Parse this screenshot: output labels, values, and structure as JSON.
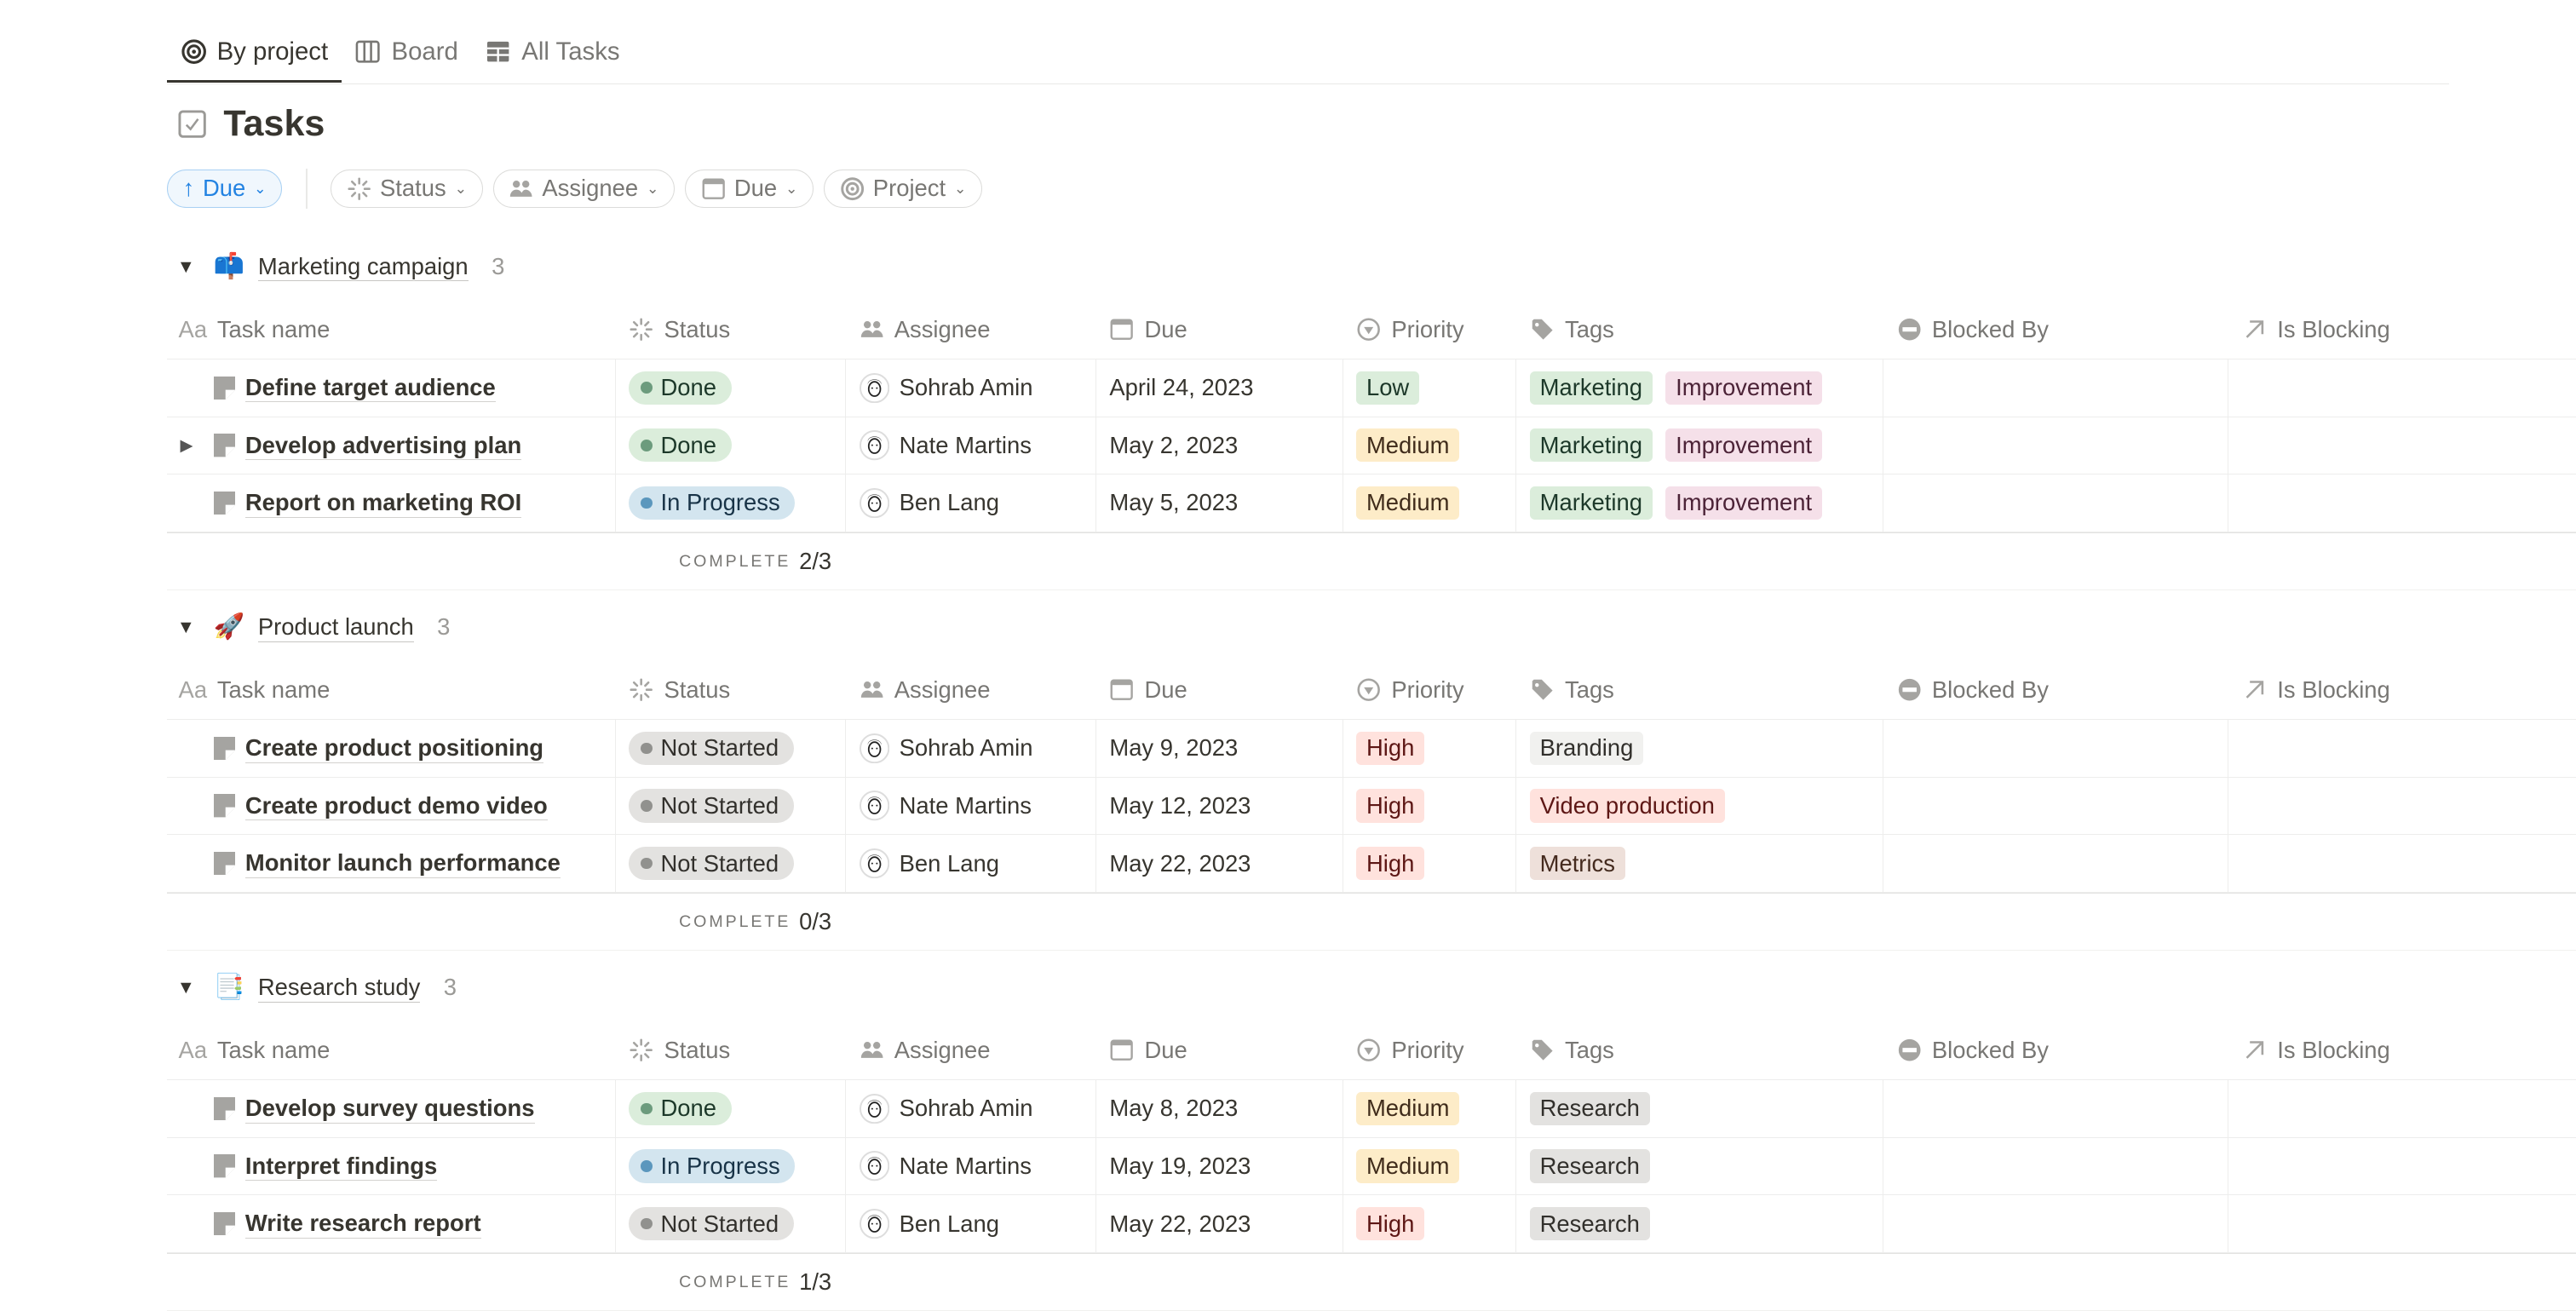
{
  "tabs": [
    {
      "label": "By project",
      "icon": "target-icon",
      "active": true
    },
    {
      "label": "Board",
      "icon": "board-icon"
    },
    {
      "label": "All Tasks",
      "icon": "table-icon"
    }
  ],
  "page_title": "Tasks",
  "sort_chip": {
    "label": "Due",
    "direction": "ascending"
  },
  "filters": [
    {
      "label": "Status",
      "icon": "status-icon"
    },
    {
      "label": "Assignee",
      "icon": "people-icon"
    },
    {
      "label": "Due",
      "icon": "calendar-icon"
    },
    {
      "label": "Project",
      "icon": "target-icon"
    }
  ],
  "columns": [
    {
      "label": "Task name",
      "icon": "Aa"
    },
    {
      "label": "Status",
      "icon": "status-icon"
    },
    {
      "label": "Assignee",
      "icon": "people-icon"
    },
    {
      "label": "Due",
      "icon": "calendar-icon"
    },
    {
      "label": "Priority",
      "icon": "priority-icon"
    },
    {
      "label": "Tags",
      "icon": "tag-icon"
    },
    {
      "label": "Blocked By",
      "icon": "blocked-icon"
    },
    {
      "label": "Is Blocking",
      "icon": "arrow-up-right-icon"
    }
  ],
  "complete_label": "COMPLETE",
  "colors": {
    "Done": {
      "bg": "#dbeddb",
      "dot": "#6c9b7d",
      "fg": "#1c3829"
    },
    "In Progress": {
      "bg": "#d3e5ef",
      "dot": "#5b97bd",
      "fg": "#183347"
    },
    "Not Started": {
      "bg": "#e3e2e0",
      "dot": "#91918e",
      "fg": "#32302c"
    },
    "Low": {
      "bg": "#dbeddb",
      "fg": "#1c3829"
    },
    "Medium": {
      "bg": "#fdecc8",
      "fg": "#402c1b"
    },
    "High": {
      "bg": "#ffe2dd",
      "fg": "#5d1715"
    },
    "Marketing": {
      "bg": "#dbeddb",
      "fg": "#1c3829"
    },
    "Improvement": {
      "bg": "#f5e0e9",
      "fg": "#4c2337"
    },
    "Branding": {
      "bg": "#f1f1ef",
      "fg": "#32302c"
    },
    "Video production": {
      "bg": "#ffe2dd",
      "fg": "#5d1715"
    },
    "Metrics": {
      "bg": "#eee0da",
      "fg": "#442a1e"
    },
    "Research": {
      "bg": "#e3e2e0",
      "fg": "#32302c"
    }
  },
  "groups": [
    {
      "name": "Marketing campaign",
      "emoji": "📫",
      "count": "3",
      "complete": "2/3",
      "rows": [
        {
          "task": "Define target audience",
          "status": "Done",
          "assignee": "Sohrab Amin",
          "due": "April 24, 2023",
          "priority": "Low",
          "tags": [
            "Marketing",
            "Improvement"
          ]
        },
        {
          "task": "Develop advertising plan",
          "status": "Done",
          "assignee": "Nate Martins",
          "due": "May 2, 2023",
          "priority": "Medium",
          "tags": [
            "Marketing",
            "Improvement"
          ],
          "has_subtasks": true
        },
        {
          "task": "Report on marketing ROI",
          "status": "In Progress",
          "assignee": "Ben Lang",
          "due": "May 5, 2023",
          "priority": "Medium",
          "tags": [
            "Marketing",
            "Improvement"
          ]
        }
      ]
    },
    {
      "name": "Product launch",
      "emoji": "🚀",
      "count": "3",
      "complete": "0/3",
      "rows": [
        {
          "task": "Create product positioning",
          "status": "Not Started",
          "assignee": "Sohrab Amin",
          "due": "May 9, 2023",
          "priority": "High",
          "tags": [
            "Branding"
          ]
        },
        {
          "task": "Create product demo video",
          "status": "Not Started",
          "assignee": "Nate Martins",
          "due": "May 12, 2023",
          "priority": "High",
          "tags": [
            "Video production"
          ]
        },
        {
          "task": "Monitor launch performance",
          "status": "Not Started",
          "assignee": "Ben Lang",
          "due": "May 22, 2023",
          "priority": "High",
          "tags": [
            "Metrics"
          ]
        }
      ]
    },
    {
      "name": "Research study",
      "emoji": "📑",
      "count": "3",
      "complete": "1/3",
      "rows": [
        {
          "task": "Develop survey questions",
          "status": "Done",
          "assignee": "Sohrab Amin",
          "due": "May 8, 2023",
          "priority": "Medium",
          "tags": [
            "Research"
          ]
        },
        {
          "task": "Interpret findings",
          "status": "In Progress",
          "assignee": "Nate Martins",
          "due": "May 19, 2023",
          "priority": "Medium",
          "tags": [
            "Research"
          ]
        },
        {
          "task": "Write research report",
          "status": "Not Started",
          "assignee": "Ben Lang",
          "due": "May 22, 2023",
          "priority": "High",
          "tags": [
            "Research"
          ]
        }
      ]
    }
  ]
}
